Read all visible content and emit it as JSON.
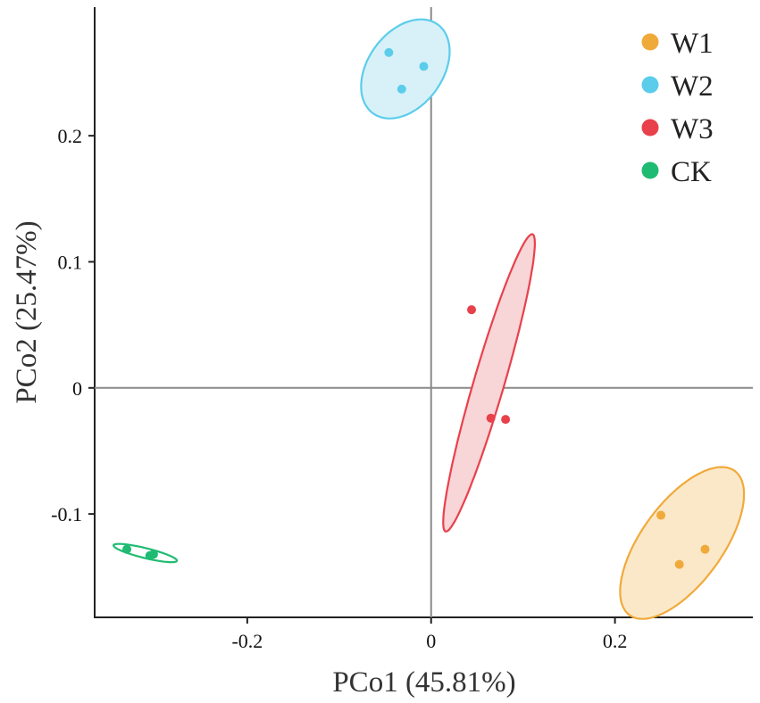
{
  "chart_data": {
    "type": "scatter",
    "title": "",
    "xlabel": "PCo1 (45.81%)",
    "ylabel": "PCo2 (25.47%)",
    "xlim": [
      -0.366,
      0.35
    ],
    "ylim": [
      -0.182,
      0.302
    ],
    "x_ticks": [
      -0.2,
      0,
      0.2
    ],
    "x_tick_labels": [
      "-0.2",
      "0",
      "0.2"
    ],
    "y_ticks": [
      -0.1,
      0,
      0.1,
      0.2
    ],
    "y_tick_labels": [
      "-0.1",
      "0",
      "0.1",
      "0.2"
    ],
    "grid": false,
    "zero_lines": true,
    "legend_position": "top-right",
    "series": [
      {
        "name": "W1",
        "color": "#F0AA3A",
        "fill": "#FBE8C9",
        "points": [
          {
            "x": 0.25,
            "y": -0.101
          },
          {
            "x": 0.298,
            "y": -0.128
          },
          {
            "x": 0.27,
            "y": -0.14
          }
        ],
        "ellipse": {
          "cx": 0.273,
          "cy": -0.123,
          "rx": 0.082,
          "ry": 0.038,
          "angle_deg": 40
        }
      },
      {
        "name": "W2",
        "color": "#5BCDEB",
        "fill": "#D8F1F8",
        "points": [
          {
            "x": -0.046,
            "y": 0.266
          },
          {
            "x": -0.008,
            "y": 0.255
          },
          {
            "x": -0.032,
            "y": 0.237
          }
        ],
        "ellipse": {
          "cx": -0.028,
          "cy": 0.253,
          "rx": 0.052,
          "ry": 0.034,
          "angle_deg": 30
        }
      },
      {
        "name": "W3",
        "color": "#E8414C",
        "fill": "#F8D5D7",
        "points": [
          {
            "x": 0.044,
            "y": 0.062
          },
          {
            "x": 0.065,
            "y": -0.024
          },
          {
            "x": 0.081,
            "y": -0.025
          }
        ],
        "ellipse": {
          "cx": 0.063,
          "cy": 0.004,
          "rx": 0.127,
          "ry": 0.016,
          "angle_deg": 68
        }
      },
      {
        "name": "CK",
        "color": "#20BB72",
        "fill": "#FFFFFF",
        "points": [
          {
            "x": -0.331,
            "y": -0.128
          },
          {
            "x": -0.306,
            "y": -0.133
          },
          {
            "x": -0.302,
            "y": -0.132
          }
        ],
        "ellipse": {
          "cx": -0.311,
          "cy": -0.131,
          "rx": 0.035,
          "ry": 0.004,
          "angle_deg": -10
        }
      }
    ]
  }
}
